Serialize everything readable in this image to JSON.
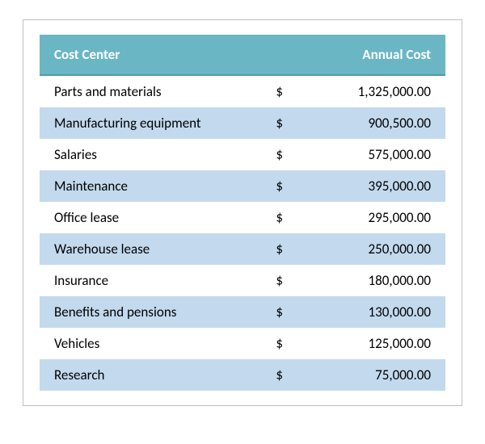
{
  "table": {
    "header_bg": "#6ab6c4",
    "header_text_color": "#ffffff",
    "row_odd_bg": "#ffffff",
    "row_even_bg": "#c3d9ee",
    "border_color": "#bfbfbf",
    "columns": [
      "Cost Center",
      "Annual Cost"
    ],
    "currency_symbol": "$",
    "rows": [
      {
        "label": "Parts and materials",
        "amount": "1,325,000.00"
      },
      {
        "label": "Manufacturing equipment",
        "amount": "900,500.00"
      },
      {
        "label": "Salaries",
        "amount": "575,000.00"
      },
      {
        "label": "Maintenance",
        "amount": "395,000.00"
      },
      {
        "label": "Office lease",
        "amount": "295,000.00"
      },
      {
        "label": "Warehouse lease",
        "amount": "250,000.00"
      },
      {
        "label": "Insurance",
        "amount": "180,000.00"
      },
      {
        "label": "Benefits and pensions",
        "amount": "130,000.00"
      },
      {
        "label": "Vehicles",
        "amount": "125,000.00"
      },
      {
        "label": "Research",
        "amount": "75,000.00"
      }
    ]
  }
}
